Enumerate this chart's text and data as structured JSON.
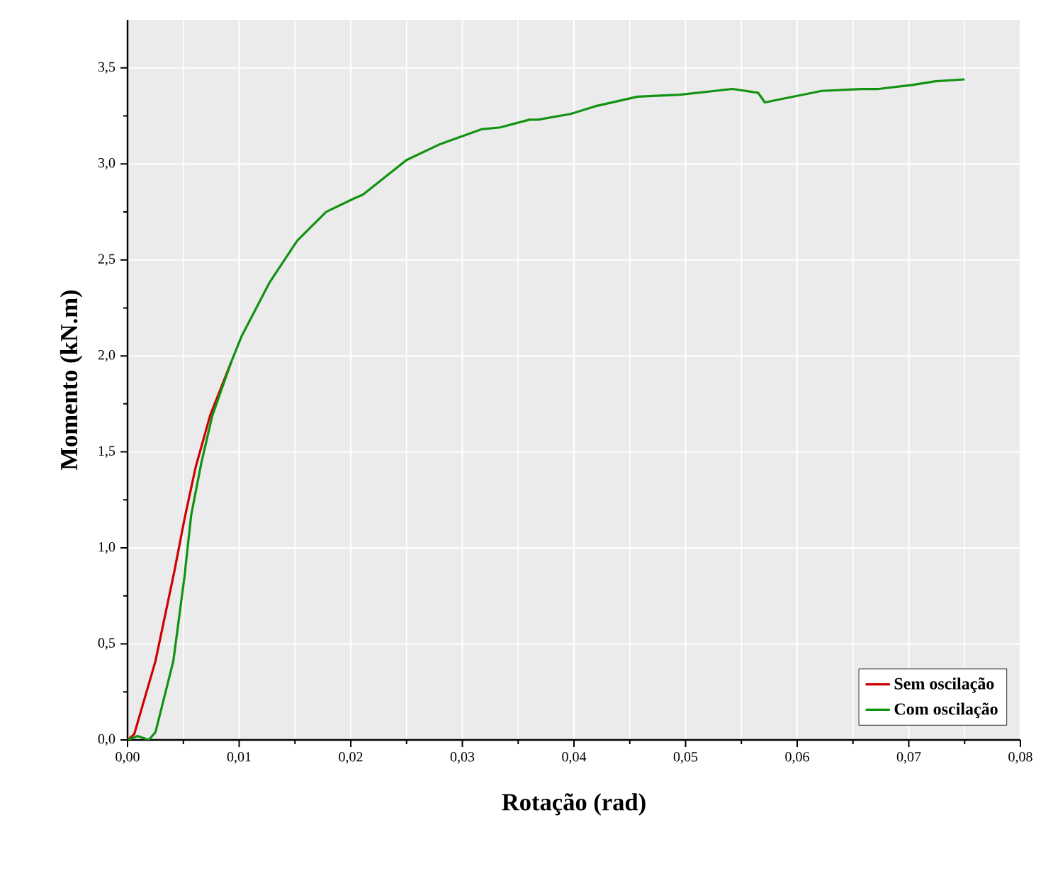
{
  "chart_data": {
    "type": "line",
    "xlabel": "Rotação (rad)",
    "ylabel": "Momento (kN.m)",
    "xlim": [
      0,
      0.08
    ],
    "ylim": [
      0,
      3.75
    ],
    "xticks": [
      {
        "value": 0,
        "label": "0,00"
      },
      {
        "value": 0.01,
        "label": "0,01"
      },
      {
        "value": 0.02,
        "label": "0,02"
      },
      {
        "value": 0.03,
        "label": "0,03"
      },
      {
        "value": 0.04,
        "label": "0,04"
      },
      {
        "value": 0.05,
        "label": "0,05"
      },
      {
        "value": 0.06,
        "label": "0,06"
      },
      {
        "value": 0.07,
        "label": "0,07"
      },
      {
        "value": 0.08,
        "label": "0,08"
      }
    ],
    "yticks": [
      {
        "value": 0,
        "label": "0,0"
      },
      {
        "value": 0.5,
        "label": "0,5"
      },
      {
        "value": 1.0,
        "label": "1,0"
      },
      {
        "value": 1.5,
        "label": "1,5"
      },
      {
        "value": 2.0,
        "label": "2,0"
      },
      {
        "value": 2.5,
        "label": "2,5"
      },
      {
        "value": 3.0,
        "label": "3,0"
      },
      {
        "value": 3.5,
        "label": "3,5"
      }
    ],
    "grid": true,
    "legend": "bottom right",
    "marker": "none",
    "line_style": "solid",
    "series": [
      {
        "name": "Sem oscilação",
        "color": "#d00000",
        "x": [
          0,
          0.0006,
          0.0025,
          0.0042,
          0.0051,
          0.0061,
          0.0074,
          0.0093
        ],
        "values": [
          0,
          0.03,
          0.41,
          0.88,
          1.15,
          1.42,
          1.69,
          1.97
        ]
      },
      {
        "name": "Com oscilação",
        "color": "#119211",
        "x": [
          0,
          0.0009,
          0.0019,
          0.0025,
          0.0041,
          0.0051,
          0.0057,
          0.0066,
          0.0076,
          0.0093,
          0.0102,
          0.0127,
          0.0152,
          0.0178,
          0.0203,
          0.0211,
          0.025,
          0.0279,
          0.0317,
          0.0334,
          0.036,
          0.0368,
          0.0397,
          0.0419,
          0.0457,
          0.0495,
          0.0542,
          0.0565,
          0.0571,
          0.0622,
          0.0657,
          0.0673,
          0.0702,
          0.0724,
          0.075
        ],
        "values": [
          0,
          0.02,
          0.0,
          0.04,
          0.41,
          0.85,
          1.17,
          1.44,
          1.69,
          1.97,
          2.1,
          2.38,
          2.6,
          2.75,
          2.82,
          2.84,
          3.02,
          3.1,
          3.18,
          3.19,
          3.23,
          3.23,
          3.26,
          3.3,
          3.35,
          3.36,
          3.39,
          3.37,
          3.32,
          3.38,
          3.39,
          3.39,
          3.41,
          3.43,
          3.44
        ]
      }
    ]
  }
}
